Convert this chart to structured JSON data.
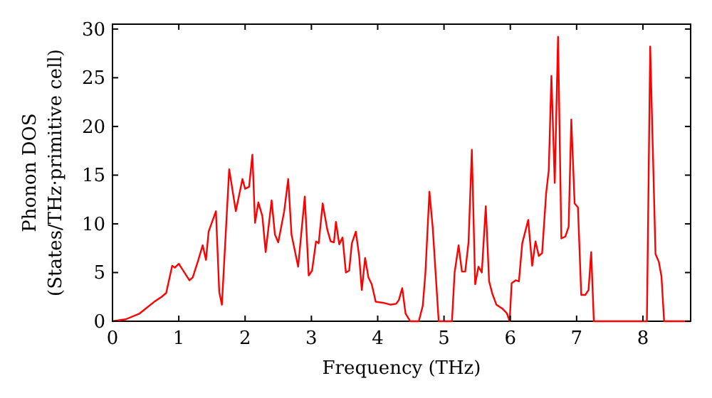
{
  "chart_data": {
    "type": "line",
    "xlabel": "Frequency (THz)",
    "ylabel": "Phonon DOS\n(States/THz·primitive cell)",
    "xlim": [
      0,
      8.72
    ],
    "ylim": [
      0,
      30.5
    ],
    "xticks": [
      0,
      1,
      2,
      3,
      4,
      5,
      6,
      7,
      8
    ],
    "yticks": [
      0,
      5,
      10,
      15,
      20,
      25,
      30
    ],
    "grid": false,
    "series": [
      {
        "color": "#ff0000",
        "x": [
          0,
          0.2,
          0.41,
          0.63,
          0.74,
          0.81,
          0.9,
          0.94,
          1.0,
          1.16,
          1.21,
          1.29,
          1.36,
          1.41,
          1.45,
          1.56,
          1.61,
          1.65,
          1.76,
          1.86,
          1.96,
          2.0,
          2.06,
          2.11,
          2.15,
          2.2,
          2.26,
          2.31,
          2.4,
          2.45,
          2.5,
          2.59,
          2.65,
          2.7,
          2.8,
          2.9,
          2.96,
          3.01,
          3.07,
          3.11,
          3.17,
          3.24,
          3.29,
          3.34,
          3.37,
          3.42,
          3.47,
          3.52,
          3.57,
          3.61,
          3.67,
          3.72,
          3.76,
          3.81,
          3.86,
          3.91,
          3.97,
          4.08,
          4.19,
          4.28,
          4.32,
          4.37,
          4.42,
          4.49,
          4.62,
          4.68,
          4.72,
          4.78,
          4.83,
          4.92,
          5.12,
          5.16,
          5.22,
          5.27,
          5.32,
          5.37,
          5.42,
          5.47,
          5.52,
          5.57,
          5.63,
          5.68,
          5.73,
          5.79,
          5.88,
          5.95,
          5.99,
          6.02,
          6.08,
          6.13,
          6.18,
          6.27,
          6.33,
          6.38,
          6.43,
          6.48,
          6.54,
          6.58,
          6.62,
          6.67,
          6.72,
          6.77,
          6.83,
          6.88,
          6.92,
          6.97,
          7.02,
          7.07,
          7.13,
          7.18,
          7.22,
          7.26,
          8.06,
          8.11,
          8.19,
          8.24,
          8.28,
          8.32,
          8.72
        ],
        "values": [
          0,
          0.2,
          0.8,
          2,
          2.5,
          2.9,
          5.7,
          5.5,
          5.9,
          4.2,
          4.5,
          6.2,
          7.8,
          6.3,
          9.2,
          11.3,
          3,
          1.7,
          15.6,
          11.3,
          14.6,
          13.6,
          13.8,
          17.1,
          10.1,
          12.2,
          10.8,
          7.1,
          12.4,
          8.9,
          8.1,
          11.3,
          14.6,
          8.9,
          5.6,
          12.8,
          4.7,
          5.2,
          8.2,
          8,
          12.1,
          9.4,
          8.2,
          8.1,
          10.2,
          7.9,
          8.6,
          5,
          5.2,
          8,
          9.2,
          6.7,
          3.2,
          6.5,
          4.5,
          3.8,
          2,
          1.9,
          1.7,
          1.8,
          2.2,
          3.4,
          0.8,
          0,
          0,
          1.6,
          5,
          13.3,
          9.6,
          0,
          0,
          5,
          7.8,
          5.1,
          5.1,
          8.1,
          17.6,
          3.8,
          5.6,
          5,
          11.8,
          4.1,
          2.8,
          1.7,
          1.3,
          0.8,
          0,
          3.9,
          4.2,
          4.1,
          8,
          10.4,
          5.7,
          8.2,
          6.7,
          7,
          13.1,
          15.5,
          25.2,
          14.2,
          29.2,
          8.5,
          8.7,
          9.7,
          20.7,
          12.1,
          11.7,
          2.7,
          2.7,
          3.2,
          7.1,
          0,
          0,
          28.2,
          6.9,
          6.1,
          4.6,
          0,
          0
        ]
      }
    ]
  }
}
